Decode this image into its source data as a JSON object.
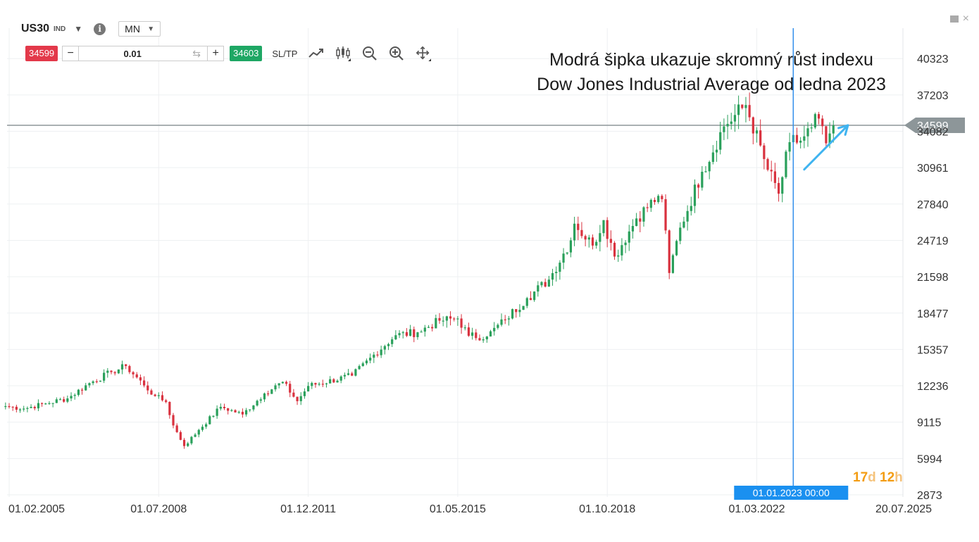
{
  "header": {
    "symbol": "US30",
    "symbol_type": "IND",
    "timeframe": "MN"
  },
  "trade": {
    "sell_price": "34599",
    "volume": "0.01",
    "minus_label": "−",
    "plus_label": "+",
    "buy_price": "34603",
    "sltp_label": "SL/TP"
  },
  "annotation": {
    "line1": "Modrá šipka ukazuje skromný růst indexu",
    "line2": "Dow Jones Industrial Average od ledna 2023"
  },
  "countdown": {
    "days": "17",
    "days_unit": "d",
    "hours": "12",
    "hours_unit": "h"
  },
  "colors": {
    "up": "#2aa05b",
    "down": "#d9323f",
    "crosshair": "#3390ec",
    "arrow": "#40b4f0",
    "price_line": "#8d9699"
  },
  "icons": [
    "line-chart-icon",
    "candlestick-icon",
    "zoom-out-icon",
    "zoom-in-icon",
    "move-icon",
    "minimize-icon",
    "close-icon",
    "info-icon"
  ],
  "chart_data": {
    "type": "candlestick",
    "symbol": "US30",
    "interval": "monthly",
    "ylim": [
      2873,
      41800
    ],
    "y_ticks": [
      2873,
      5994,
      9115,
      12236,
      15357,
      18477,
      21598,
      24719,
      27840,
      30961,
      34082,
      37203,
      40323
    ],
    "x_tick_labels": [
      "01.02.2005",
      "01.07.2008",
      "01.12.2011",
      "01.05.2015",
      "01.10.2018",
      "01.03.2022",
      "20.07.2025"
    ],
    "current_price": 34599,
    "crosshair_label": "01.01.2023 00:00",
    "arrow": {
      "from": {
        "date": "2023-04",
        "value": 30800
      },
      "to": {
        "date": "2024-04",
        "value": 34600
      }
    },
    "monthly_close_anchors": [
      {
        "date": "2005-01",
        "close": 10490
      },
      {
        "date": "2005-06",
        "close": 10275
      },
      {
        "date": "2005-12",
        "close": 10718
      },
      {
        "date": "2006-06",
        "close": 11150
      },
      {
        "date": "2006-12",
        "close": 12463
      },
      {
        "date": "2007-06",
        "close": 13408
      },
      {
        "date": "2007-10",
        "close": 13930
      },
      {
        "date": "2008-03",
        "close": 12262
      },
      {
        "date": "2008-06",
        "close": 11350
      },
      {
        "date": "2008-09",
        "close": 10850
      },
      {
        "date": "2008-11",
        "close": 8829
      },
      {
        "date": "2009-02",
        "close": 7062
      },
      {
        "date": "2009-06",
        "close": 8447
      },
      {
        "date": "2009-12",
        "close": 10428
      },
      {
        "date": "2010-06",
        "close": 9774
      },
      {
        "date": "2010-12",
        "close": 11578
      },
      {
        "date": "2011-05",
        "close": 12570
      },
      {
        "date": "2011-09",
        "close": 10913
      },
      {
        "date": "2011-12",
        "close": 12218
      },
      {
        "date": "2012-12",
        "close": 13104
      },
      {
        "date": "2013-06",
        "close": 14910
      },
      {
        "date": "2013-12",
        "close": 16577
      },
      {
        "date": "2014-06",
        "close": 16827
      },
      {
        "date": "2014-12",
        "close": 17823
      },
      {
        "date": "2015-05",
        "close": 18011
      },
      {
        "date": "2015-08",
        "close": 16528
      },
      {
        "date": "2016-01",
        "close": 16466
      },
      {
        "date": "2016-06",
        "close": 17930
      },
      {
        "date": "2016-12",
        "close": 19763
      },
      {
        "date": "2017-06",
        "close": 21350
      },
      {
        "date": "2017-12",
        "close": 24719
      },
      {
        "date": "2018-01",
        "close": 26149
      },
      {
        "date": "2018-06",
        "close": 24271
      },
      {
        "date": "2018-09",
        "close": 26458
      },
      {
        "date": "2018-12",
        "close": 23327
      },
      {
        "date": "2019-06",
        "close": 26600
      },
      {
        "date": "2019-12",
        "close": 28538
      },
      {
        "date": "2020-01",
        "close": 28256
      },
      {
        "date": "2020-03",
        "close": 21917
      },
      {
        "date": "2020-06",
        "close": 25813
      },
      {
        "date": "2020-12",
        "close": 30606
      },
      {
        "date": "2021-06",
        "close": 34503
      },
      {
        "date": "2021-12",
        "close": 36338
      },
      {
        "date": "2022-06",
        "close": 30775
      },
      {
        "date": "2022-09",
        "close": 28725
      },
      {
        "date": "2022-12",
        "close": 33147
      },
      {
        "date": "2023-03",
        "close": 33274
      },
      {
        "date": "2023-06",
        "close": 34407
      },
      {
        "date": "2023-07",
        "close": 35559
      },
      {
        "date": "2023-10",
        "close": 33052
      },
      {
        "date": "2023-12",
        "close": 34599
      }
    ]
  }
}
